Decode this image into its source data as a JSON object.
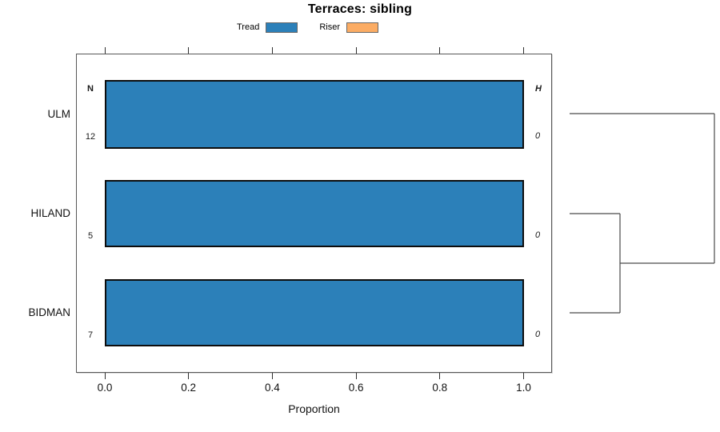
{
  "headers": {
    "n": "N",
    "h": "H"
  },
  "chart_data": {
    "type": "bar",
    "orientation": "horizontal",
    "title": "Terraces: sibling",
    "xlabel": "Proportion",
    "xlim": [
      0,
      1
    ],
    "x_ticks": [
      "0.0",
      "0.2",
      "0.4",
      "0.6",
      "0.8",
      "1.0"
    ],
    "x_tick_values": [
      0,
      0.2,
      0.4,
      0.6,
      0.8,
      1.0
    ],
    "categories": [
      "ULM",
      "HILAND",
      "BIDMAN"
    ],
    "series": [
      {
        "name": "Tread",
        "color": "#2c80b9",
        "values": [
          1.0,
          1.0,
          1.0
        ]
      },
      {
        "name": "Riser",
        "color": "#fbac64",
        "values": [
          0.0,
          0.0,
          0.0
        ]
      }
    ],
    "n_values": [
      "12",
      "5",
      "7"
    ],
    "h_values": [
      "0",
      "0",
      "0"
    ],
    "legend_position": "top",
    "grid": false,
    "dendrogram": {
      "leaves": [
        "ULM",
        "HILAND",
        "BIDMAN"
      ],
      "joins": [
        {
          "members": [
            "HILAND",
            "BIDMAN"
          ],
          "order": 1
        },
        {
          "members": [
            "HILAND+BIDMAN",
            "ULM"
          ],
          "order": 2
        }
      ]
    }
  }
}
